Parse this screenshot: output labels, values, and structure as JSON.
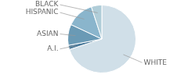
{
  "chart_data": {
    "type": "pie",
    "categories": [
      "WHITE",
      "A.I.",
      "ASIAN",
      "HISPANIC",
      "BLACK"
    ],
    "values": [
      70,
      2,
      10,
      13,
      5
    ],
    "colors": [
      "#d0dfe8",
      "#4a7a9b",
      "#6a9ab5",
      "#8ab5cc",
      "#b0cdd8"
    ]
  }
}
